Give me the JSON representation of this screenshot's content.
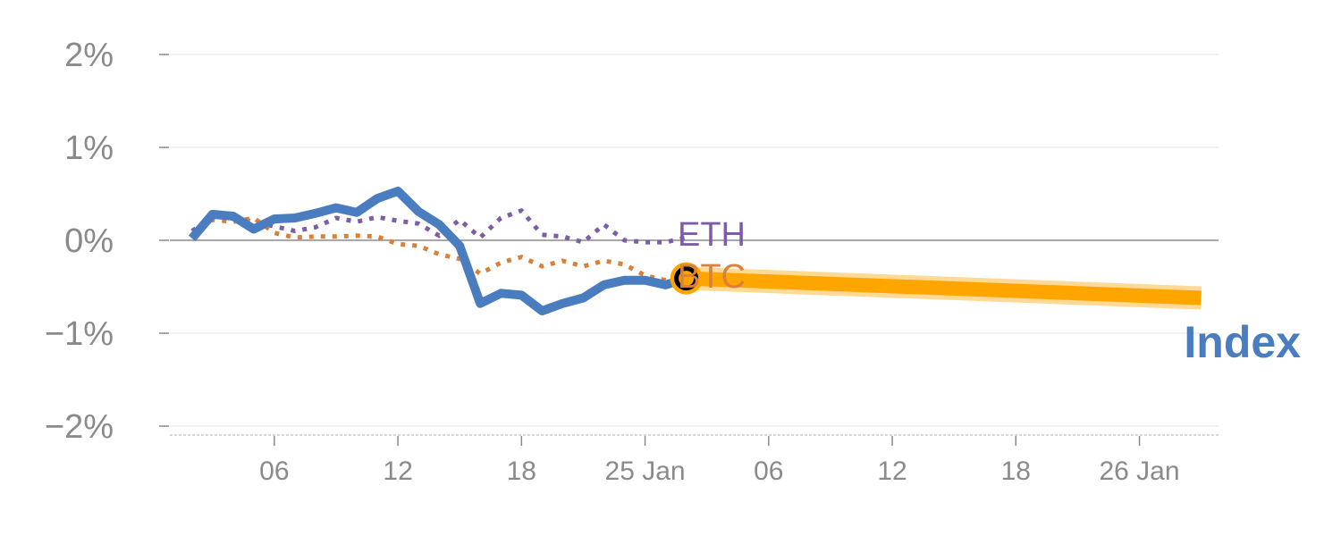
{
  "chart_data": {
    "type": "line",
    "title": "",
    "xlabel": "",
    "ylabel": "",
    "ylim": [
      -2,
      2
    ],
    "grid": true,
    "yticks": [
      {
        "value": 2,
        "label": "2%"
      },
      {
        "value": 1,
        "label": "1%"
      },
      {
        "value": 0,
        "label": "0%"
      },
      {
        "value": -1,
        "label": "−1%"
      },
      {
        "value": -2,
        "label": "−2%"
      }
    ],
    "xticks": [
      {
        "day": 6,
        "label": "06"
      },
      {
        "day": 12,
        "label": "12"
      },
      {
        "day": 18,
        "label": "18"
      },
      {
        "day": 24,
        "label": "25 Jan"
      },
      {
        "day": 30,
        "label": "06"
      },
      {
        "day": 36,
        "label": "12"
      },
      {
        "day": 42,
        "label": "18"
      },
      {
        "day": 48,
        "label": "26 Jan"
      }
    ],
    "x_range": [
      1,
      52
    ],
    "series": [
      {
        "name": "Index",
        "color": "#4a7cc0",
        "style": "solid",
        "x": [
          2,
          3,
          4,
          5,
          6,
          7,
          8,
          9,
          10,
          11,
          12,
          13,
          14,
          15,
          16,
          17,
          18,
          19,
          20,
          21,
          22,
          23,
          24,
          25,
          26
        ],
        "values": [
          0.02,
          0.28,
          0.26,
          0.12,
          0.23,
          0.24,
          0.29,
          0.35,
          0.3,
          0.45,
          0.53,
          0.31,
          0.17,
          -0.06,
          -0.68,
          -0.57,
          -0.59,
          -0.76,
          -0.68,
          -0.62,
          -0.48,
          -0.43,
          -0.43,
          -0.48,
          -0.41
        ]
      },
      {
        "name": "ETH",
        "color": "#7b5ea7",
        "style": "dotted",
        "x": [
          2,
          3,
          4,
          5,
          6,
          7,
          8,
          9,
          10,
          11,
          12,
          13,
          14,
          15,
          16,
          17,
          18,
          19,
          20,
          21,
          22,
          23,
          24,
          25,
          26
        ],
        "values": [
          0.1,
          0.25,
          0.24,
          0.2,
          0.15,
          0.1,
          0.14,
          0.24,
          0.2,
          0.25,
          0.21,
          0.18,
          0.05,
          0.22,
          0.03,
          0.24,
          0.32,
          0.06,
          0.04,
          -0.02,
          0.17,
          0.0,
          -0.02,
          -0.02,
          0.03
        ]
      },
      {
        "name": "BTC",
        "color": "#d9803a",
        "style": "dotted",
        "x": [
          2,
          3,
          4,
          5,
          6,
          7,
          8,
          9,
          10,
          11,
          12,
          13,
          14,
          15,
          16,
          17,
          18,
          19,
          20,
          21,
          22,
          23,
          24,
          25,
          26
        ],
        "values": [
          0.06,
          0.22,
          0.2,
          0.24,
          0.08,
          0.03,
          0.04,
          0.04,
          0.05,
          0.04,
          -0.04,
          -0.06,
          -0.15,
          -0.2,
          -0.36,
          -0.24,
          -0.18,
          -0.28,
          -0.22,
          -0.28,
          -0.22,
          -0.26,
          -0.38,
          -0.43,
          -0.41
        ]
      },
      {
        "name": "Index projection",
        "color": "#ffa500",
        "style": "band",
        "x": [
          26,
          51
        ],
        "values": [
          -0.41,
          -0.62
        ]
      }
    ],
    "labels": {
      "eth": "ETH",
      "btc": "BTC",
      "index": "Index"
    },
    "marker": {
      "x": 26,
      "value": -0.41,
      "fill": "#ffa500",
      "ring": "#000000"
    }
  }
}
